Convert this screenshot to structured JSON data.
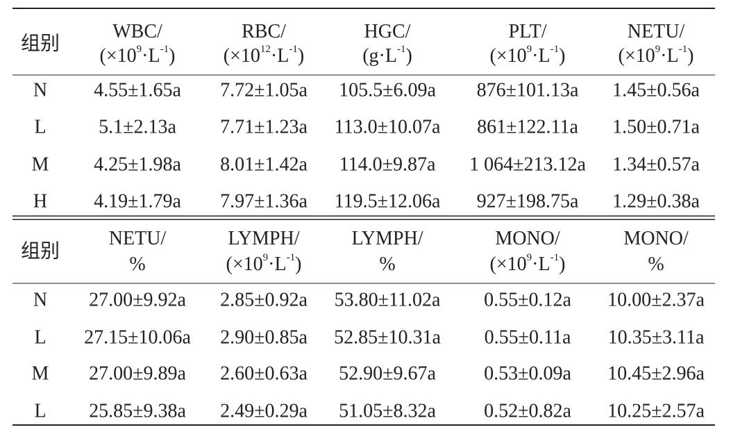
{
  "tables": [
    {
      "header": [
        {
          "lines": [
            [
              {
                "t": "组别"
              }
            ]
          ]
        },
        {
          "lines": [
            [
              {
                "t": "WBC/"
              }
            ],
            [
              {
                "t": "(×10"
              },
              {
                "sup": "9"
              },
              {
                "t": "·L"
              },
              {
                "sup": "-1"
              },
              {
                "t": ")"
              }
            ]
          ]
        },
        {
          "lines": [
            [
              {
                "t": "RBC/"
              }
            ],
            [
              {
                "t": "(×10"
              },
              {
                "sup": "12"
              },
              {
                "t": "·L"
              },
              {
                "sup": "-1"
              },
              {
                "t": ")"
              }
            ]
          ]
        },
        {
          "lines": [
            [
              {
                "t": "HGC/"
              }
            ],
            [
              {
                "t": "(g·L"
              },
              {
                "sup": "-1"
              },
              {
                "t": ")"
              }
            ]
          ]
        },
        {
          "lines": [
            [
              {
                "t": "PLT/"
              }
            ],
            [
              {
                "t": "(×10"
              },
              {
                "sup": "9"
              },
              {
                "t": "·L"
              },
              {
                "sup": "-1"
              },
              {
                "t": ")"
              }
            ]
          ]
        },
        {
          "lines": [
            [
              {
                "t": "NETU/"
              }
            ],
            [
              {
                "t": "(×10"
              },
              {
                "sup": "9"
              },
              {
                "t": "·L"
              },
              {
                "sup": "-1"
              },
              {
                "t": ")"
              }
            ]
          ]
        }
      ],
      "rows": [
        [
          "N",
          "4.55±1.65a",
          "7.72±1.05a",
          "105.5±6.09a",
          "876±101.13a",
          "1.45±0.56a"
        ],
        [
          "L",
          "5.1±2.13a",
          "7.71±1.23a",
          "113.0±10.07a",
          "861±122.11a",
          "1.50±0.71a"
        ],
        [
          "M",
          "4.25±1.98a",
          "8.01±1.42a",
          "114.0±9.87a",
          "1 064±213.12a",
          "1.34±0.57a"
        ],
        [
          "H",
          "4.19±1.79a",
          "7.97±1.36a",
          "119.5±12.06a",
          "927±198.75a",
          "1.29±0.38a"
        ]
      ]
    },
    {
      "header": [
        {
          "lines": [
            [
              {
                "t": "组别"
              }
            ]
          ]
        },
        {
          "lines": [
            [
              {
                "t": "NETU/"
              }
            ],
            [
              {
                "t": "%"
              }
            ]
          ]
        },
        {
          "lines": [
            [
              {
                "t": "LYMPH/"
              }
            ],
            [
              {
                "t": "(×10"
              },
              {
                "sup": "9"
              },
              {
                "t": "·L"
              },
              {
                "sup": "-1"
              },
              {
                "t": ")"
              }
            ]
          ]
        },
        {
          "lines": [
            [
              {
                "t": "LYMPH/"
              }
            ],
            [
              {
                "t": "%"
              }
            ]
          ]
        },
        {
          "lines": [
            [
              {
                "t": "MONO/"
              }
            ],
            [
              {
                "t": "(×10"
              },
              {
                "sup": "9"
              },
              {
                "t": "·L"
              },
              {
                "sup": "-1"
              },
              {
                "t": ")"
              }
            ]
          ]
        },
        {
          "lines": [
            [
              {
                "t": "MONO/"
              }
            ],
            [
              {
                "t": "%"
              }
            ]
          ]
        }
      ],
      "rows": [
        [
          "N",
          "27.00±9.92a",
          "2.85±0.92a",
          "53.80±11.02a",
          "0.55±0.12a",
          "10.00±2.37a"
        ],
        [
          "L",
          "27.15±10.06a",
          "2.90±0.85a",
          "52.85±10.31a",
          "0.55±0.11a",
          "10.35±3.11a"
        ],
        [
          "M",
          "27.00±9.89a",
          "2.60±0.63a",
          "52.90±9.67a",
          "0.53±0.09a",
          "10.45±2.96a"
        ],
        [
          "L",
          "25.85±9.38a",
          "2.49±0.29a",
          "51.05±8.32a",
          "0.52±0.82a",
          "10.25±2.57a"
        ]
      ]
    }
  ]
}
